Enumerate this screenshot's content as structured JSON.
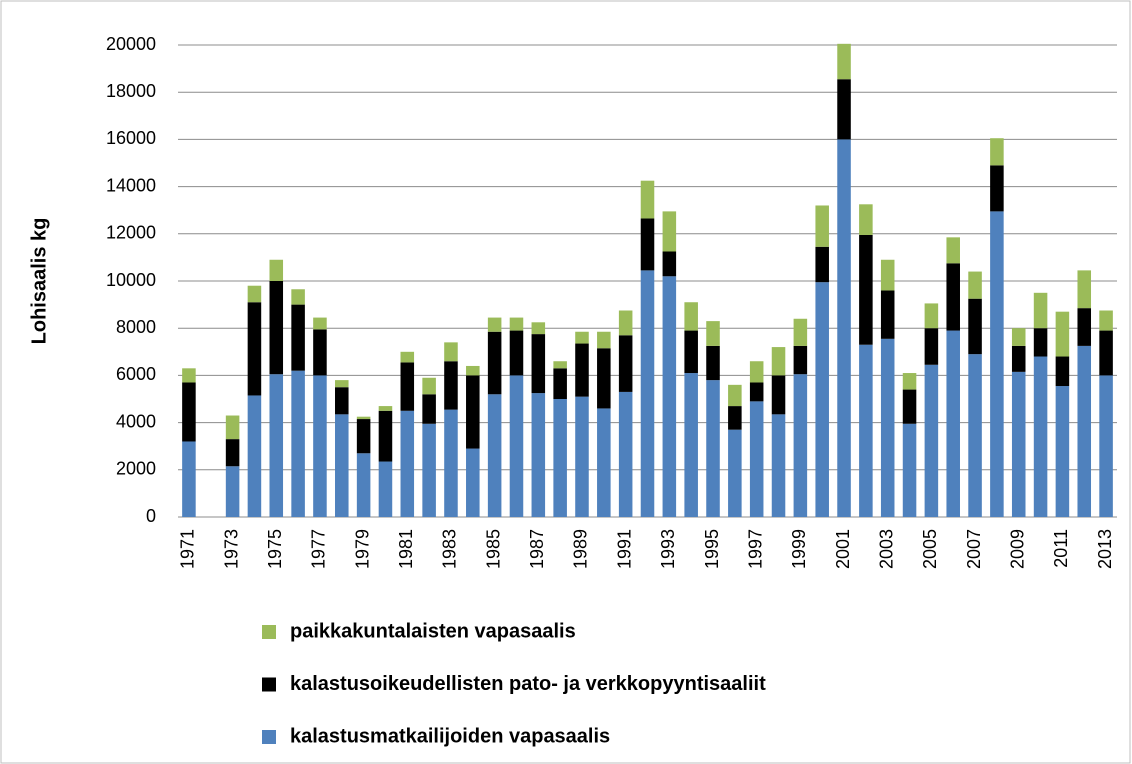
{
  "chart_data": {
    "type": "bar",
    "stacked": true,
    "y_label": "Lohisaalis kg",
    "categories": [
      "1971",
      null,
      "1973",
      null,
      "1975",
      null,
      "1977",
      null,
      "1979",
      null,
      "1981",
      null,
      "1983",
      null,
      "1985",
      null,
      "1987",
      null,
      "1989",
      null,
      "1991",
      null,
      "1993",
      null,
      "1995",
      null,
      "1997",
      null,
      "1999",
      null,
      "2001",
      null,
      "2003",
      null,
      "2005",
      null,
      "2007",
      null,
      "2009",
      null,
      "2011",
      null,
      "2013"
    ],
    "series": [
      {
        "name": "kalastusmatkailijoiden vapasaalis",
        "color": "#4f81bd",
        "values": [
          3200,
          0,
          2150,
          5150,
          6050,
          6200,
          6000,
          4350,
          2700,
          2350,
          4500,
          3950,
          4550,
          2900,
          5200,
          6000,
          5250,
          5000,
          5100,
          4600,
          5300,
          10450,
          10200,
          6100,
          5800,
          3700,
          4900,
          4350,
          6050,
          9950,
          16000,
          7300,
          7550,
          3950,
          6450,
          7900,
          6900,
          12950,
          6150,
          6800,
          5550,
          7250,
          6000
        ]
      },
      {
        "name": "kalastusoikeudellisten pato- ja verkkopyyntisaaliit",
        "color": "#000000",
        "values": [
          2500,
          0,
          1150,
          3950,
          3950,
          2800,
          1950,
          1150,
          1450,
          2150,
          2050,
          1250,
          2050,
          3100,
          2650,
          1900,
          2500,
          1300,
          2250,
          2550,
          2400,
          2200,
          1050,
          1800,
          1450,
          1000,
          800,
          1650,
          1200,
          1500,
          2550,
          4650,
          2050,
          1450,
          1550,
          2850,
          2350,
          1950,
          1100,
          1200,
          1250,
          1600,
          1900
        ]
      },
      {
        "name": "paikkakuntalaisten vapasaalis",
        "color": "#9bbb59",
        "values": [
          600,
          0,
          1000,
          700,
          900,
          650,
          500,
          300,
          100,
          200,
          450,
          700,
          800,
          400,
          600,
          550,
          500,
          300,
          500,
          700,
          1050,
          1600,
          1700,
          1200,
          1050,
          900,
          900,
          1200,
          1150,
          1750,
          1500,
          1300,
          1300,
          700,
          1050,
          1100,
          1150,
          1150,
          750,
          1500,
          1900,
          1600,
          850
        ]
      }
    ],
    "ylim": [
      0,
      20000
    ],
    "yticks": [
      0,
      2000,
      4000,
      6000,
      8000,
      10000,
      12000,
      14000,
      16000,
      18000,
      20000
    ],
    "grid": true
  }
}
